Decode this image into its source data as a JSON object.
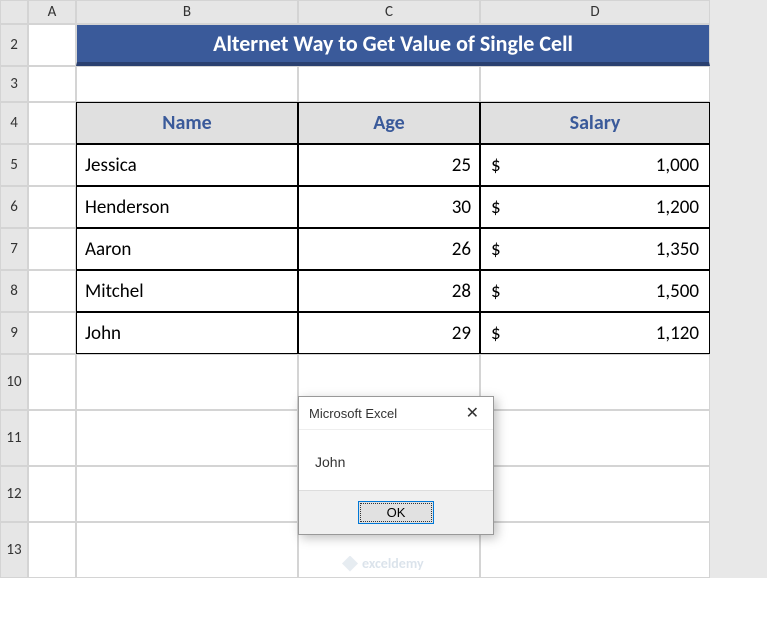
{
  "columns": [
    "A",
    "B",
    "C",
    "D"
  ],
  "rows": [
    "2",
    "3",
    "4",
    "5",
    "6",
    "7",
    "8",
    "9",
    "10",
    "11",
    "12",
    "13"
  ],
  "title": "Alternet Way to Get Value of Single Cell",
  "headers": {
    "name": "Name",
    "age": "Age",
    "salary": "Salary"
  },
  "data": [
    {
      "name": "Jessica",
      "age": "25",
      "salary": "1,000"
    },
    {
      "name": "Henderson",
      "age": "30",
      "salary": "1,200"
    },
    {
      "name": "Aaron",
      "age": "26",
      "salary": "1,350"
    },
    {
      "name": "Mitchel",
      "age": "28",
      "salary": "1,500"
    },
    {
      "name": "John",
      "age": "29",
      "salary": "1,120"
    }
  ],
  "currency": "$",
  "dialog": {
    "title": "Microsoft Excel",
    "message": "John",
    "ok": "OK"
  },
  "watermark": "exceldemy",
  "colors": {
    "title_bg": "#3a5a9a",
    "title_border": "#2a4070",
    "header_bg": "#e0e0e0",
    "header_color": "#3a5a9a",
    "grid_border": "#d4d4d4",
    "table_border": "#000000"
  }
}
